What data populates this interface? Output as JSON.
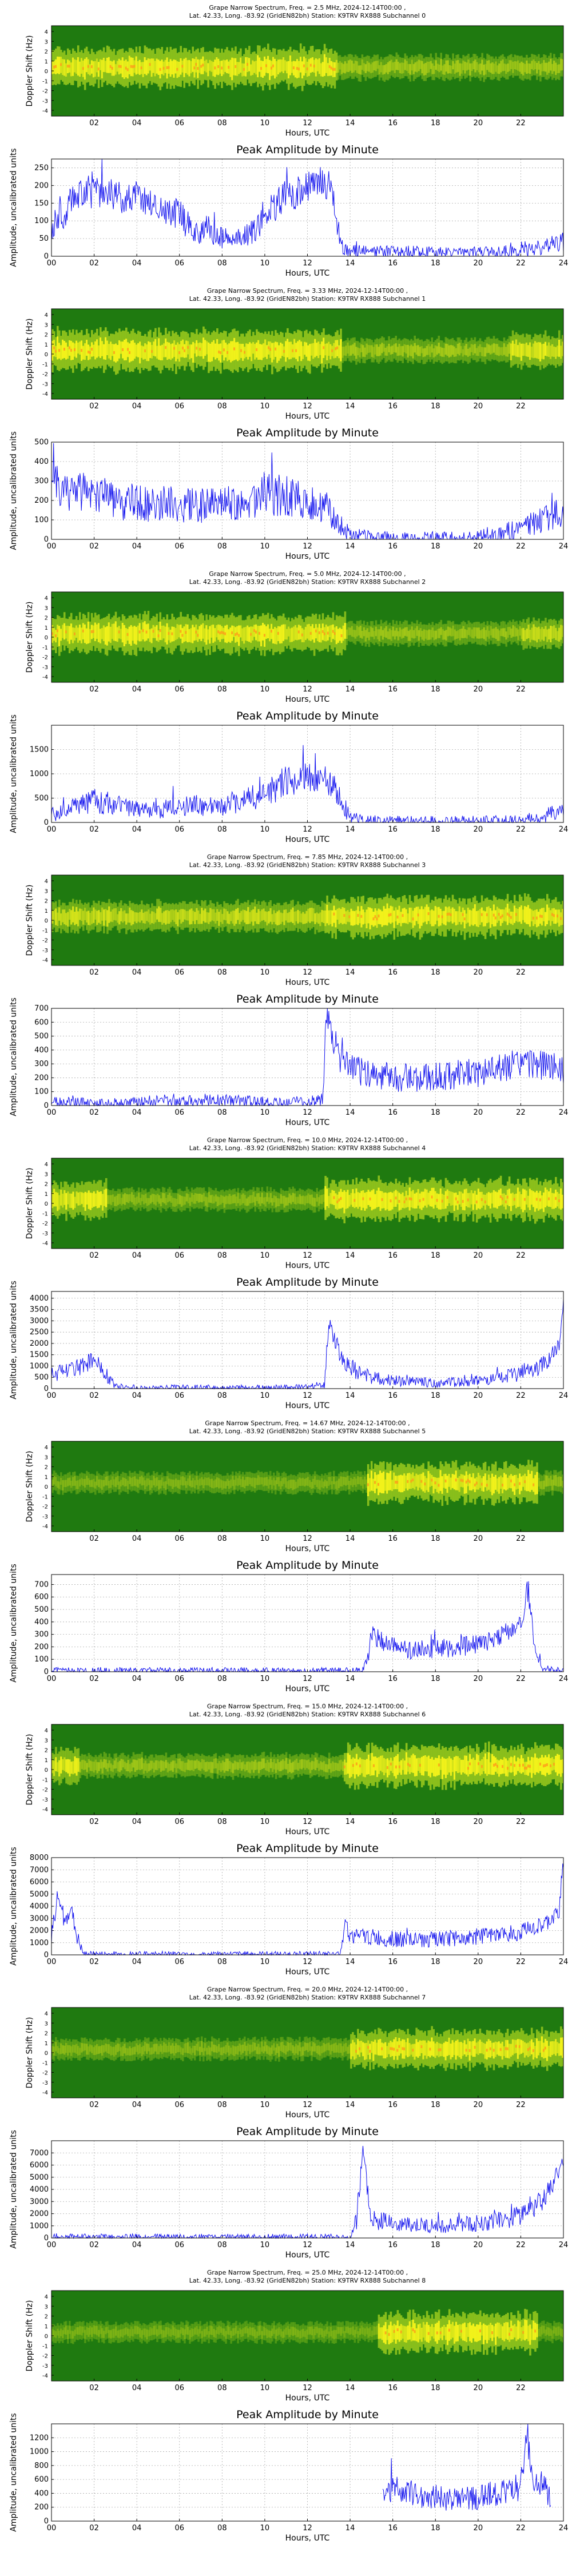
{
  "figure": {
    "spec_xlabel": "Hours, UTC",
    "spec_ylabel": "Doppler Shift (Hz)",
    "amp_title": "Peak Amplitude by Minute",
    "amp_xlabel": "Hours, UTC",
    "amp_ylabel": "Amplitude, uncalibrated units",
    "spec_xticks": [
      "02",
      "04",
      "06",
      "08",
      "10",
      "12",
      "14",
      "16",
      "18",
      "20",
      "22"
    ],
    "amp_xticks": [
      "00",
      "02",
      "04",
      "06",
      "08",
      "10",
      "12",
      "14",
      "16",
      "18",
      "20",
      "22",
      "24"
    ],
    "doppler_ticks": [
      "4",
      "3",
      "2",
      "1",
      "0",
      "-1",
      "-2",
      "-3",
      "-4"
    ],
    "colors": {
      "line": "#1010ee",
      "spec_bg": "#1f7a10",
      "spec_mid": "#8fc21c",
      "spec_hot": "#f2f21a",
      "spec_peak": "#ff9a1a",
      "grid": "#aaaaaa"
    }
  },
  "chart_data": [
    {
      "type": "heatmap",
      "title": "Grape Narrow Spectrum, Freq. = 2.5 MHz, 2024-12-14T00:00 ,",
      "subtitle": "Lat.  42.33, Long. -83.92 (GridEN82bh) Station: K9TRV RX888 Subchannel 0",
      "xlabel": "Hours, UTC",
      "ylabel": "Doppler Shift (Hz)",
      "xlim": [
        0,
        24
      ],
      "ylim": [
        -5,
        5
      ],
      "activity": [
        [
          0,
          13.4,
          0.95
        ],
        [
          13.4,
          24,
          0.3
        ]
      ]
    },
    {
      "type": "line",
      "title": "Peak Amplitude by Minute",
      "xlabel": "Hours, UTC",
      "ylabel": "Amplitude, uncalibrated units",
      "xlim": [
        0,
        24
      ],
      "ylim": [
        0,
        275
      ],
      "yticks": [
        0,
        50,
        100,
        150,
        200,
        250
      ],
      "x": [
        0,
        0.5,
        1,
        1.5,
        2,
        2.5,
        3,
        3.5,
        4,
        4.5,
        5,
        5.5,
        6,
        6.5,
        7,
        7.5,
        8,
        8.5,
        9,
        9.5,
        10,
        10.5,
        11,
        11.5,
        12,
        12.5,
        13,
        13.3,
        13.6,
        14,
        15,
        16,
        17,
        18,
        19,
        20,
        21,
        22,
        22.5,
        23,
        23.5,
        24
      ],
      "y": [
        80,
        110,
        160,
        190,
        175,
        185,
        170,
        165,
        175,
        160,
        140,
        130,
        115,
        80,
        70,
        60,
        55,
        45,
        50,
        75,
        120,
        140,
        180,
        170,
        200,
        210,
        200,
        130,
        25,
        15,
        12,
        12,
        12,
        10,
        10,
        10,
        12,
        15,
        20,
        25,
        35,
        40
      ],
      "noise": 45
    },
    {
      "type": "heatmap",
      "title": "Grape Narrow Spectrum, Freq. = 3.33 MHz, 2024-12-14T00:00 ,",
      "subtitle": "Lat.  42.33, Long. -83.92 (GridEN82bh) Station: K9TRV RX888 Subchannel 1",
      "xlabel": "Hours, UTC",
      "ylabel": "Doppler Shift (Hz)",
      "xlim": [
        0,
        24
      ],
      "ylim": [
        -5,
        5
      ],
      "activity": [
        [
          0,
          13.6,
          1.0
        ],
        [
          13.6,
          21.5,
          0.3
        ],
        [
          21.5,
          24,
          0.75
        ]
      ]
    },
    {
      "type": "line",
      "title": "Peak Amplitude by Minute",
      "xlabel": "Hours, UTC",
      "ylabel": "Amplitude, uncalibrated units",
      "xlim": [
        0,
        24
      ],
      "ylim": [
        0,
        500
      ],
      "yticks": [
        0,
        100,
        200,
        300,
        400,
        500
      ],
      "x": [
        0,
        1,
        2,
        3,
        4,
        5,
        6,
        7,
        8,
        9,
        10,
        11,
        12,
        13,
        13.5,
        14,
        15,
        16,
        17,
        18,
        19,
        20,
        21,
        22,
        23,
        24
      ],
      "y": [
        280,
        250,
        220,
        200,
        190,
        180,
        175,
        170,
        170,
        200,
        240,
        220,
        190,
        150,
        80,
        20,
        8,
        5,
        5,
        5,
        5,
        10,
        30,
        60,
        100,
        150
      ],
      "noise": 110
    },
    {
      "type": "heatmap",
      "title": "Grape Narrow Spectrum, Freq. = 5.0 MHz, 2024-12-14T00:00 ,",
      "subtitle": "Lat.  42.33, Long. -83.92 (GridEN82bh) Station: K9TRV RX888 Subchannel 2",
      "xlabel": "Hours, UTC",
      "ylabel": "Doppler Shift (Hz)",
      "xlim": [
        0,
        24
      ],
      "ylim": [
        -5,
        5
      ],
      "activity": [
        [
          0,
          13.8,
          0.9
        ],
        [
          13.8,
          22,
          0.25
        ],
        [
          22,
          24,
          0.55
        ]
      ]
    },
    {
      "type": "line",
      "title": "Peak Amplitude by Minute",
      "xlabel": "Hours, UTC",
      "ylabel": "Amplitude, uncalibrated units",
      "xlim": [
        0,
        24
      ],
      "ylim": [
        0,
        2000
      ],
      "yticks": [
        0,
        500,
        1000,
        1500
      ],
      "x": [
        0,
        1,
        2,
        3,
        4,
        5,
        6,
        7,
        8,
        9,
        10,
        11,
        11.5,
        12,
        12.5,
        13,
        13.5,
        14,
        15,
        16,
        17,
        18,
        19,
        20,
        21,
        22,
        23,
        24
      ],
      "y": [
        150,
        300,
        450,
        350,
        300,
        250,
        350,
        350,
        350,
        450,
        600,
        850,
        900,
        900,
        950,
        800,
        500,
        100,
        40,
        30,
        30,
        30,
        30,
        30,
        35,
        40,
        120,
        260
      ],
      "noise": 320
    },
    {
      "type": "heatmap",
      "title": "Grape Narrow Spectrum, Freq. = 7.85 MHz, 2024-12-14T00:00 ,",
      "subtitle": "Lat.  42.33, Long. -83.92 (GridEN82bh) Station: K9TRV RX888 Subchannel 3",
      "xlabel": "Hours, UTC",
      "ylabel": "Doppler Shift (Hz)",
      "xlim": [
        0,
        24
      ],
      "ylim": [
        -5,
        5
      ],
      "activity": [
        [
          0,
          12.8,
          0.55
        ],
        [
          12.8,
          24,
          0.95
        ]
      ]
    },
    {
      "type": "line",
      "title": "Peak Amplitude by Minute",
      "xlabel": "Hours, UTC",
      "ylabel": "Amplitude, uncalibrated units",
      "xlim": [
        0,
        24
      ],
      "ylim": [
        0,
        700
      ],
      "yticks": [
        0,
        100,
        200,
        300,
        400,
        500,
        600,
        700
      ],
      "x": [
        0,
        1,
        2,
        3,
        4,
        5,
        6,
        7,
        8,
        9,
        10,
        11,
        12,
        12.7,
        12.9,
        13.3,
        14,
        15,
        16,
        17,
        18,
        19,
        20,
        21,
        22,
        23,
        24
      ],
      "y": [
        20,
        25,
        15,
        15,
        20,
        35,
        45,
        40,
        35,
        30,
        25,
        20,
        20,
        50,
        650,
        380,
        260,
        220,
        200,
        200,
        210,
        220,
        240,
        270,
        300,
        290,
        270
      ],
      "noise": 110
    },
    {
      "type": "heatmap",
      "title": "Grape Narrow Spectrum, Freq. = 10.0 MHz, 2024-12-14T00:00 ,",
      "subtitle": "Lat.  42.33, Long. -83.92 (GridEN82bh) Station: K9TRV RX888 Subchannel 4",
      "xlabel": "Hours, UTC",
      "ylabel": "Doppler Shift (Hz)",
      "xlim": [
        0,
        24
      ],
      "ylim": [
        -5,
        5
      ],
      "activity": [
        [
          0,
          2.6,
          0.85
        ],
        [
          2.6,
          12.8,
          0.2
        ],
        [
          12.8,
          24,
          1.0
        ]
      ]
    },
    {
      "type": "line",
      "title": "Peak Amplitude by Minute",
      "xlabel": "Hours, UTC",
      "ylabel": "Amplitude, uncalibrated units",
      "xlim": [
        0,
        24
      ],
      "ylim": [
        0,
        4300
      ],
      "yticks": [
        0,
        500,
        1000,
        1500,
        2000,
        2500,
        3000,
        3500,
        4000
      ],
      "x": [
        0,
        1,
        2,
        2.5,
        3,
        4,
        6,
        8,
        10,
        12,
        12.8,
        13,
        13.5,
        14,
        15,
        16,
        17,
        18,
        19,
        20,
        21,
        22,
        23,
        23.8,
        24
      ],
      "y": [
        600,
        800,
        1300,
        700,
        80,
        40,
        40,
        40,
        40,
        60,
        200,
        3000,
        1600,
        900,
        500,
        350,
        300,
        250,
        300,
        350,
        450,
        700,
        1000,
        1900,
        4000
      ],
      "noise": 400
    },
    {
      "type": "heatmap",
      "title": "Grape Narrow Spectrum, Freq. = 14.67 MHz, 2024-12-14T00:00 ,",
      "subtitle": "Lat.  42.33, Long. -83.92 (GridEN82bh) Station: K9TRV RX888 Subchannel 5",
      "xlabel": "Hours, UTC",
      "ylabel": "Doppler Shift (Hz)",
      "xlim": [
        0,
        24
      ],
      "ylim": [
        -5,
        5
      ],
      "activity": [
        [
          0,
          14.8,
          0.12
        ],
        [
          14.8,
          22.8,
          0.95
        ],
        [
          22.8,
          24,
          0.2
        ]
      ]
    },
    {
      "type": "line",
      "title": "Peak Amplitude by Minute",
      "xlabel": "Hours, UTC",
      "ylabel": "Amplitude, uncalibrated units",
      "xlim": [
        0,
        24
      ],
      "ylim": [
        0,
        780
      ],
      "yticks": [
        0,
        100,
        200,
        300,
        400,
        500,
        600,
        700
      ],
      "x": [
        0,
        5,
        10,
        14.5,
        14.8,
        15,
        16,
        17,
        18,
        19,
        20,
        21,
        22,
        22.3,
        22.6,
        23,
        24
      ],
      "y": [
        8,
        8,
        8,
        8,
        80,
        300,
        200,
        170,
        180,
        200,
        220,
        280,
        380,
        650,
        300,
        20,
        15
      ],
      "noise": 80
    },
    {
      "type": "heatmap",
      "title": "Grape Narrow Spectrum, Freq. = 15.0 MHz, 2024-12-14T00:00 ,",
      "subtitle": "Lat.  42.33, Long. -83.92 (GridEN82bh) Station: K9TRV RX888 Subchannel 6",
      "xlabel": "Hours, UTC",
      "ylabel": "Doppler Shift (Hz)",
      "xlim": [
        0,
        24
      ],
      "ylim": [
        -5,
        5
      ],
      "activity": [
        [
          0,
          1.3,
          0.75
        ],
        [
          1.3,
          13.7,
          0.25
        ],
        [
          13.7,
          24,
          1.0
        ]
      ]
    },
    {
      "type": "line",
      "title": "Peak Amplitude by Minute",
      "xlabel": "Hours, UTC",
      "ylabel": "Amplitude, uncalibrated units",
      "xlim": [
        0,
        24
      ],
      "ylim": [
        0,
        8000
      ],
      "yticks": [
        0,
        1000,
        2000,
        3000,
        4000,
        5000,
        6000,
        7000,
        8000
      ],
      "x": [
        0,
        0.3,
        0.6,
        0.9,
        1.2,
        1.5,
        3,
        6,
        9,
        12,
        13.5,
        13.8,
        14,
        15,
        16,
        17,
        18,
        19,
        20,
        21,
        22,
        23,
        23.8,
        24
      ],
      "y": [
        1500,
        5000,
        2500,
        4000,
        1500,
        80,
        60,
        60,
        60,
        60,
        80,
        2500,
        1600,
        1500,
        1300,
        1200,
        1300,
        1400,
        1500,
        1600,
        1900,
        2400,
        3500,
        7500
      ],
      "noise": 700
    },
    {
      "type": "heatmap",
      "title": "Grape Narrow Spectrum, Freq. = 20.0 MHz, 2024-12-14T00:00 ,",
      "subtitle": "Lat.  42.33, Long. -83.92 (GridEN82bh) Station: K9TRV RX888 Subchannel 7",
      "xlabel": "Hours, UTC",
      "ylabel": "Doppler Shift (Hz)",
      "xlim": [
        0,
        24
      ],
      "ylim": [
        -5,
        5
      ],
      "activity": [
        [
          0,
          14,
          0.15
        ],
        [
          14,
          24,
          0.9
        ]
      ]
    },
    {
      "type": "line",
      "title": "Peak Amplitude by Minute",
      "xlabel": "Hours, UTC",
      "ylabel": "Amplitude, uncalibrated units",
      "xlim": [
        0,
        24
      ],
      "ylim": [
        0,
        8000
      ],
      "yticks": [
        0,
        1000,
        2000,
        3000,
        4000,
        5000,
        6000,
        7000
      ],
      "x": [
        0,
        6,
        12,
        14,
        14.3,
        14.6,
        15,
        16,
        17,
        18,
        19,
        20,
        21,
        22,
        23,
        24
      ],
      "y": [
        50,
        50,
        50,
        50,
        1500,
        7300,
        1500,
        1200,
        1100,
        1000,
        1100,
        1200,
        1400,
        2000,
        3000,
        6000
      ],
      "noise": 900
    },
    {
      "type": "heatmap",
      "title": "Grape Narrow Spectrum, Freq. = 25.0 MHz, 2024-12-14T00:00 ,",
      "subtitle": "Lat.  42.33, Long. -83.92 (GridEN82bh) Station: K9TRV RX888 Subchannel 8",
      "xlabel": "Hours, UTC",
      "ylabel": "Doppler Shift (Hz)",
      "xlim": [
        0,
        24
      ],
      "ylim": [
        -5,
        5
      ],
      "activity": [
        [
          0,
          15.3,
          0.08
        ],
        [
          15.3,
          22.8,
          0.95
        ],
        [
          22.8,
          24,
          0.08
        ]
      ]
    },
    {
      "type": "line",
      "title": "Peak Amplitude by Minute",
      "xlabel": "Hours, UTC",
      "ylabel": "Amplitude, uncalibrated units",
      "xlim": [
        0,
        24
      ],
      "ylim": [
        0,
        1400
      ],
      "yticks": [
        0,
        200,
        400,
        600,
        800,
        1000,
        1200
      ],
      "x": [
        0,
        15.2,
        15.5,
        16,
        17,
        18,
        19,
        20,
        21,
        22,
        22.3,
        22.6,
        23,
        23.4
      ],
      "y": [
        null,
        null,
        300,
        500,
        400,
        350,
        300,
        350,
        400,
        500,
        1250,
        500,
        600,
        300
      ],
      "noise": 200
    }
  ]
}
